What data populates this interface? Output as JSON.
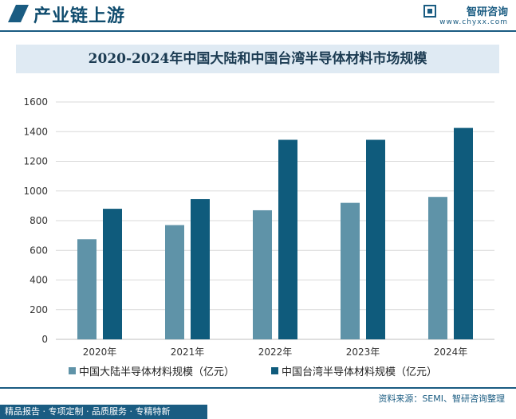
{
  "header": {
    "title": "产业链上游",
    "brand_name": "智研咨询",
    "brand_url": "www.chyxx.com"
  },
  "chart_data": {
    "type": "bar",
    "title": "2020-2024年中国大陆和中国台湾半导体材料市场规模",
    "categories": [
      "2020年",
      "2021年",
      "2022年",
      "2023年",
      "2024年"
    ],
    "series": [
      {
        "name": "中国大陆半导体材料规模（亿元）",
        "color": "#5f93a8",
        "values": [
          675,
          770,
          870,
          920,
          960
        ]
      },
      {
        "name": "中国台湾半导体材料规模（亿元）",
        "color": "#0f5b7c",
        "values": [
          880,
          945,
          1345,
          1345,
          1425
        ]
      }
    ],
    "ylim": [
      0,
      1600
    ],
    "yticks": [
      0,
      200,
      400,
      600,
      800,
      1000,
      1200,
      1400,
      1600
    ],
    "grid": true,
    "legend": "bottom"
  },
  "footer": {
    "source": "资料来源：SEMI、智研咨询整理",
    "slogan": "精品报告 · 专项定制 · 品质服务 · 专精特新"
  }
}
